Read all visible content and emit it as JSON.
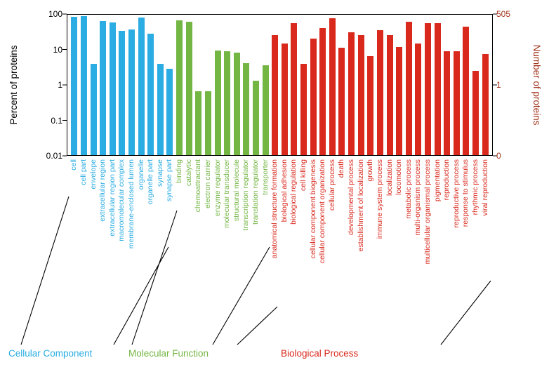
{
  "left_axis": {
    "label": "Percent of proteins",
    "ticks": [
      {
        "label": "100",
        "percent": 100
      },
      {
        "label": "10",
        "percent": 10
      },
      {
        "label": "1",
        "percent": 1
      },
      {
        "label": "0.1",
        "percent": 0.1
      },
      {
        "label": "0.01",
        "percent": 0.01
      }
    ]
  },
  "right_axis": {
    "label": "Number of proteins",
    "color": "#A03018",
    "ticks": [
      {
        "label": "505",
        "percent": 100
      },
      {
        "label": "1",
        "percent": 1
      },
      {
        "label": "0",
        "percent": 0.01
      }
    ]
  },
  "legend": [
    {
      "label": "Cellular Component",
      "color": "#2BACE2"
    },
    {
      "label": "Molecular Function",
      "color": "#74B644"
    },
    {
      "label": "Biological Process",
      "color": "#D9291D"
    }
  ],
  "chart_data": {
    "type": "bar",
    "y_scale": "log",
    "ylim": [
      0.01,
      100
    ],
    "ylabel_left": "Percent of proteins",
    "ylabel_right": "Number of proteins",
    "total_proteins": 505,
    "grid": false,
    "groups": [
      {
        "name": "Cellular Component",
        "color": "#2BACE2",
        "categories": [
          "cell",
          "cell part",
          "envelope",
          "extracellular region",
          "extracellular region part",
          "macromolecular complex",
          "membrane-enclosed lumen",
          "organelle",
          "organelle part",
          "synapse",
          "synapse part"
        ],
        "values": [
          85,
          88,
          4,
          62,
          58,
          33,
          37,
          78,
          28,
          4,
          2.8
        ]
      },
      {
        "name": "Molecular Function",
        "color": "#74B644",
        "categories": [
          "binding",
          "catalytic",
          "chemoattractant",
          "electron carrier",
          "enzyme regulator",
          "molecular transducer",
          "structural molecule",
          "transcription regulator",
          "translation regulator",
          "transporter"
        ],
        "values": [
          66,
          60,
          0.65,
          0.65,
          9.5,
          9,
          8,
          4.2,
          1.3,
          3.6
        ]
      },
      {
        "name": "Biological Process",
        "color": "#D9291D",
        "categories": [
          "anatomical structure formation",
          "biological adhesion",
          "biological regulation",
          "cell killing",
          "cellular component biogenesis",
          "cellular component organization",
          "cellular process",
          "death",
          "developmental process",
          "establishment of localization",
          "growth",
          "immune system process",
          "localization",
          "locomotion",
          "metabolic process",
          "multi-organism process",
          "multicellular organismal process",
          "pigmentation",
          "reproduction",
          "reproductive process",
          "response to stimulus",
          "rhythmic process",
          "viral reproduction"
        ],
        "values": [
          25,
          15,
          55,
          4,
          20,
          40,
          75,
          11,
          30,
          25,
          6.5,
          35,
          25,
          12,
          60,
          15,
          55,
          55,
          9,
          9,
          45,
          2.5,
          7.5
        ]
      }
    ]
  }
}
